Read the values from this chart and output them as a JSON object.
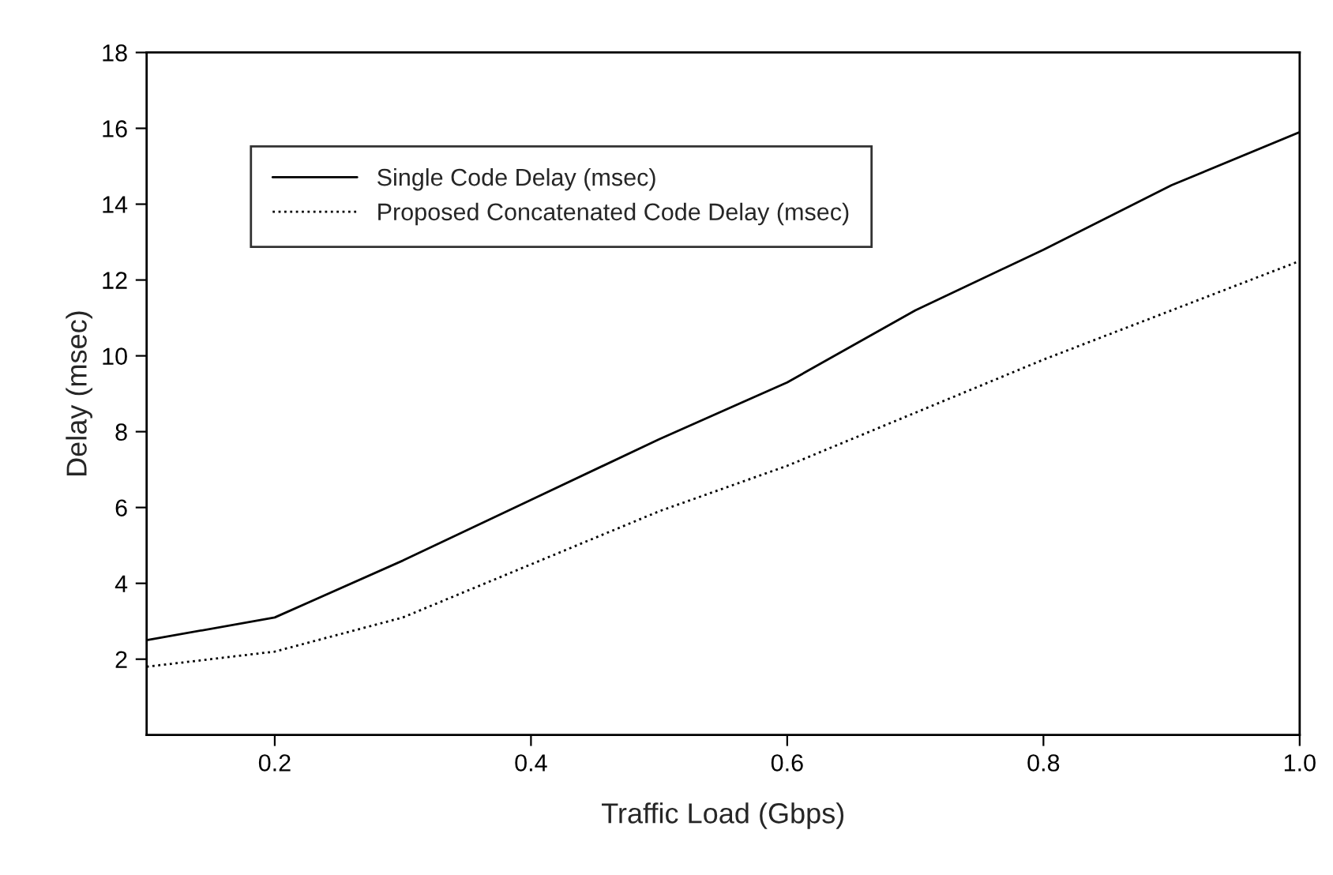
{
  "chart_data": {
    "type": "line",
    "xlabel": "Traffic Load (Gbps)",
    "ylabel": "Delay (msec)",
    "x": [
      0.1,
      0.2,
      0.3,
      0.4,
      0.5,
      0.6,
      0.7,
      0.8,
      0.9,
      1.0
    ],
    "series": [
      {
        "name": "Single Code Delay (msec)",
        "color": "#000000",
        "line_style": "solid",
        "values": [
          2.5,
          3.1,
          4.6,
          6.2,
          7.8,
          9.3,
          11.2,
          12.8,
          14.5,
          15.9
        ]
      },
      {
        "name": "Proposed Concatenated Code Delay (msec)",
        "color": "#000000",
        "line_style": "dotted",
        "values": [
          1.8,
          2.2,
          3.1,
          4.5,
          5.9,
          7.1,
          8.5,
          9.9,
          11.2,
          12.5
        ]
      }
    ],
    "xlim": [
      0.1,
      1.0
    ],
    "xticks": [
      0.2,
      0.4,
      0.6,
      0.8,
      {
        "value": 1,
        "label": "1.0"
      }
    ],
    "ylim": [
      0,
      18
    ],
    "yticks": [
      2,
      4,
      6,
      8,
      10,
      12,
      14,
      16,
      18
    ],
    "grid": false,
    "legend": "top left",
    "marker": "none"
  }
}
